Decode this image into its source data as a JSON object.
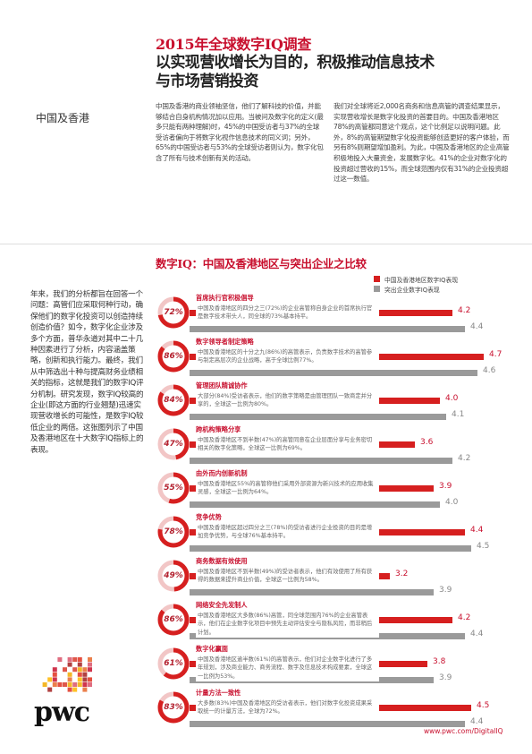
{
  "header": {
    "title_line1": "2015年全球数字IQ调查",
    "title_line2": "以实现营收增长为目的，积极推动信息技术",
    "title_line3": "与市场营销投资"
  },
  "region": "中国及香港",
  "intro": {
    "col1": "中国及香港的商业领袖坚信，他们了解科技的价值，并能够结合自身机构情况加以应用。当被问及数字化的定义(最多只能有两种理解)时，45%的中国受访者与37%的全球受访者偏向于将数字化视作信息技术的同义词；另外，65%的中国受访者与53%的全球受访者则认为，数字化包含了所有与技术创新有关的活动。",
    "col2": "我们对全球将近2,000名商务和信息高管的调查结果显示，实现营收增长是数字化投资的首要目的。中国及香港地区78%的高管都同意这个观点，这个比例足以说明问题。此外，8%的高管期望数字化投资能够创造更好的客户体验，而另有8%则期望增加盈利。为此，中国及香港地区的企业高管积极地投入大量资金，发展数字化。41%的企业对数字化的投资超过营收的15%，而全球范围内仅有31%的企业投资超过这一数值。"
  },
  "chart_title": "数字IQ：中国及香港地区与突出企业之比较",
  "legend": {
    "hk": "中国及香港地区数字IQ表现",
    "leaders": "突出企业数字IQ表现"
  },
  "side_text": "年来，我们的分析都旨在回答一个问题：高管们应采取何种行动，确保他们的数字化投资可以创造持续创造价值？如今，数字化企业涉及多个方面，普华永道对其中二十几种因素进行了分析，内容涵盖策略，创新和执行能力。最终，我们从中筛选出十种与提高财务业绩相关的指标，这就是我们的数字IQ评分机制。研究发现，数字IQ较高的企业(即这方面的行业翘楚)迅速实现营收增长的可能性，是数字IQ较低企业的两倍。这张图列示了中国及香港地区在十大数字IQ指标上的表现。",
  "colors": {
    "brand_red": "#c8102e",
    "hk_bar": "#d61f1f",
    "leader_bar": "#9a9a9a"
  },
  "chart_data": {
    "type": "bar",
    "title": "数字IQ：中国及香港地区与突出企业之比较",
    "series": [
      {
        "name": "中国及香港地区数字IQ表现",
        "values": [
          4.2,
          4.7,
          4.0,
          3.6,
          3.9,
          4.4,
          3.2,
          4.2,
          3.8,
          4.5
        ]
      },
      {
        "name": "突出企业数字IQ表现",
        "values": [
          4.4,
          4.6,
          4.1,
          4.2,
          4.0,
          4.5,
          3.9,
          4.4,
          3.9,
          4.4
        ]
      }
    ],
    "xlim": [
      0,
      5
    ]
  },
  "metrics": [
    {
      "label": "首席执行官积极倡导",
      "pct": "72%",
      "pct_value": 72,
      "hk": 4.2,
      "leader": 4.4,
      "desc": "中国及香港地区的四分之三(72%)的企业高管称自身企业的首席执行官是数字技术带头人，同全球的73%基本持平。"
    },
    {
      "label": "数字领导者制定策略",
      "pct": "86%",
      "pct_value": 86,
      "hk": 4.7,
      "leader": 4.6,
      "desc": "中国及香港地区的十分之九(86%)的高管表示，负责数字技术的高管参与制定高层次的企业战略，高于全球比例77%。"
    },
    {
      "label": "管理团队精诚协作",
      "pct": "84%",
      "pct_value": 84,
      "hk": 4.0,
      "leader": 4.1,
      "desc": "大部分(84%)受访者表示，他们的数字策略是由管理团队一致商定并分享的，全球这一比例为80%。"
    },
    {
      "label": "跨机构策略分享",
      "pct": "47%",
      "pct_value": 47,
      "hk": 3.6,
      "leader": 4.2,
      "desc": "中国及香港地区不到半数(47%)的高管同意在企业层面分享与业务密切相关的数字化策略，全球这一比例为69%。"
    },
    {
      "label": "由外而内创新机制",
      "pct": "55%",
      "pct_value": 55,
      "hk": 3.9,
      "leader": 4.0,
      "desc": "中国及香港地区55%的高管称他们采用外部资源为新兴技术的应用收集灵感，全球这一比例为64%。"
    },
    {
      "label": "竞争优势",
      "pct": "78%",
      "pct_value": 78,
      "hk": 4.4,
      "leader": 4.5,
      "desc": "中国及香港地区超过四分之三(78%)的受访者进行企业投资的目的是增加竞争优势，与全球76%基本持平。"
    },
    {
      "label": "商务数据有效使用",
      "pct": "49%",
      "pct_value": 49,
      "hk": 3.2,
      "leader": 3.9,
      "desc": "中国及香港地区不到半数(49%)的受访者表示，他们有效使用了所有获得的数据来提升商业价值，全球这一比例为58%。"
    },
    {
      "label": "网络安全先发制人",
      "pct": "86%",
      "pct_value": 86,
      "hk": 4.2,
      "leader": 4.4,
      "desc": "中国及香港地区大多数(86%)高管，同全球范围内76%的企业高管表示，他们在企业数字化项目中预先主动评估安全与隐私风险，而非稍后计划。"
    },
    {
      "label": "数字化赢面",
      "pct": "61%",
      "pct_value": 61,
      "hk": 3.8,
      "leader": 3.9,
      "desc": "中国及香港地区逾半数(61%)的高管表示，他们对企业数字化进行了多年规划，涉及商业能力、商务流程、数字及信息技术构成要素，全球这一比例为53%。"
    },
    {
      "label": "计量方法一致性",
      "pct": "83%",
      "pct_value": 83,
      "hk": 4.5,
      "leader": 4.4,
      "desc": "大多数(83%)中国及香港地区的受访者表示，他们对数字化投资成果采取统一的计量方法，全球为72%。"
    }
  ],
  "footer": {
    "logo": "pwc",
    "url": "www.pwc.com/DigitalIQ"
  }
}
